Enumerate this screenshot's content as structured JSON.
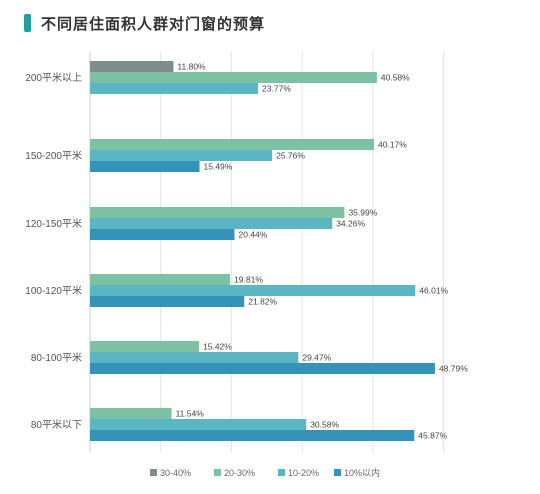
{
  "title": "不同居住面积人群对门窗的预算",
  "chart_data": {
    "type": "bar",
    "orientation": "horizontal",
    "title": "不同居住面积人群对门窗的预算",
    "categories": [
      "200平米以上",
      "150-200平米",
      "120-150平米",
      "100-120平米",
      "80-100平米",
      "80平米以下"
    ],
    "series": [
      {
        "name": "30-40%",
        "color": "#7f8c8d",
        "values": [
          11.8,
          null,
          null,
          null,
          null,
          null
        ],
        "labels": [
          "11.80%",
          "",
          "",
          "",
          "",
          ""
        ]
      },
      {
        "name": "20-30%",
        "color": "#7cc1a3",
        "values": [
          40.58,
          40.17,
          35.99,
          19.81,
          15.42,
          11.54
        ],
        "labels": [
          "40.58%",
          "40.17%",
          "35.99%",
          "19.81%",
          "15.42%",
          "11.54%"
        ]
      },
      {
        "name": "10-20%",
        "color": "#5bb6c3",
        "values": [
          23.77,
          25.76,
          34.26,
          46.01,
          29.47,
          30.58
        ],
        "labels": [
          "23.77%",
          "25.76%",
          "34.26%",
          "46.01%",
          "29.47%",
          "30.58%"
        ]
      },
      {
        "name": "10%以内",
        "color": "#3592b8",
        "values": [
          null,
          15.49,
          20.44,
          21.82,
          48.79,
          45.87
        ],
        "labels": [
          "",
          "15.49%",
          "20.44%",
          "21.82%",
          "48.79%",
          "45.87%"
        ]
      }
    ],
    "xlim": [
      0,
      50
    ],
    "grid": true,
    "legend_position": "bottom"
  }
}
